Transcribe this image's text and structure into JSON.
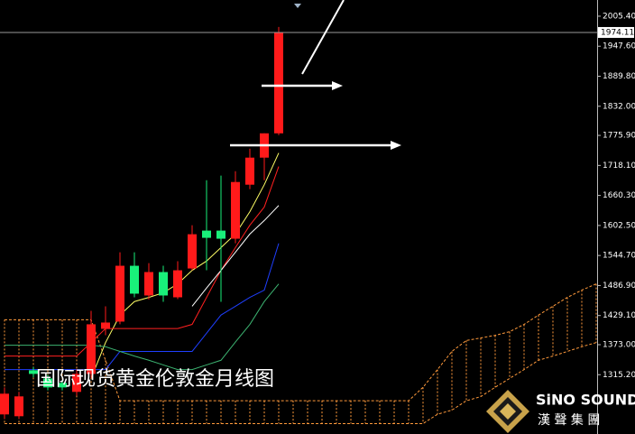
{
  "chart_data": {
    "type": "candlestick",
    "annotation": "国际现货黄金伦敦金月线图",
    "logo": {
      "brand": "SiNO SOUND",
      "subtitle": "漢 聲 集 團"
    },
    "up_color": "#ff1a1a",
    "down_color": "#19f07a",
    "background": "#000000",
    "ylim": [
      1201,
      2036.6
    ],
    "yticks": [
      {
        "value": 2005.4,
        "label": "2005.40"
      },
      {
        "value": 1947.6,
        "label": "1947.60"
      },
      {
        "value": 1889.8,
        "label": "1889.80"
      },
      {
        "value": 1832.0,
        "label": "1832.00"
      },
      {
        "value": 1775.9,
        "label": "1775.90"
      },
      {
        "value": 1718.1,
        "label": "1718.10"
      },
      {
        "value": 1660.3,
        "label": "1660.30"
      },
      {
        "value": 1602.5,
        "label": "1602.50"
      },
      {
        "value": 1544.7,
        "label": "1544.70"
      },
      {
        "value": 1486.9,
        "label": "1486.90"
      },
      {
        "value": 1429.1,
        "label": "1429.10"
      },
      {
        "value": 1373.0,
        "label": "1373.00"
      },
      {
        "value": 1315.2,
        "label": "1315.20"
      }
    ],
    "candles": {
      "open": [
        1238.7,
        1235.2,
        1323.7,
        1308.0,
        1299.4,
        1282.1,
        1316.7,
        1403.5,
        1417.4,
        1524.9,
        1467.7,
        1512.8,
        1464.2,
        1519.7,
        1592.6,
        1592.6,
        1577.0,
        1681.0,
        1733.1,
        1779.9
      ],
      "high": [
        1290.7,
        1282.0,
        1330.0,
        1315.0,
        1305.0,
        1325.4,
        1438.2,
        1446.9,
        1550.9,
        1550.9,
        1530.0,
        1524.9,
        1533.6,
        1603.0,
        1689.7,
        1698.4,
        1707.0,
        1750.4,
        1779.9,
        1984.6
      ],
      "low": [
        1230.0,
        1230.0,
        1310.0,
        1285.0,
        1285.0,
        1275.0,
        1308.0,
        1391.3,
        1412.2,
        1464.2,
        1460.0,
        1455.5,
        1460.8,
        1516.2,
        1516.2,
        1455.5,
        1568.3,
        1672.4,
        1689.7,
        1776.4
      ],
      "close": [
        1278.6,
        1273.4,
        1316.7,
        1290.7,
        1290.7,
        1316.7,
        1412.2,
        1415.6,
        1524.9,
        1471.2,
        1512.8,
        1467.7,
        1516.2,
        1585.6,
        1578.7,
        1577.0,
        1686.2,
        1733.1,
        1779.9,
        1974.11
      ]
    },
    "overlays": [
      {
        "color": "#ffff66",
        "values": [
          null,
          null,
          null,
          null,
          null,
          null,
          1308,
          1377,
          1430,
          1456,
          1464,
          1473,
          1490,
          1516,
          1534,
          1560,
          1586,
          1629,
          1681,
          1742
        ]
      },
      {
        "color": "#ff2020",
        "values": [
          1351,
          1351,
          1351,
          1351,
          1351,
          1351,
          1377,
          1404,
          1404,
          1404,
          1404,
          1404,
          1404,
          1412,
          1464,
          1516,
          1560,
          1603,
          1638,
          1716
        ]
      },
      {
        "color": "#ffffff",
        "values": [
          null,
          null,
          null,
          null,
          null,
          null,
          null,
          null,
          null,
          null,
          null,
          null,
          null,
          1447,
          1482,
          1516,
          1551,
          1586,
          1612,
          1641
        ]
      },
      {
        "color": "#1f3fff",
        "values": [
          1325,
          1325,
          1325,
          1325,
          1325,
          1325,
          1325,
          1325,
          1360,
          1360,
          1360,
          1360,
          1360,
          1360,
          1395,
          1430,
          1447,
          1464,
          1478,
          1568
        ]
      },
      {
        "color": "#3cb371",
        "values": [
          1372,
          1372,
          1372,
          1372,
          1372,
          1372,
          1372,
          1369,
          1360,
          1351,
          1343,
          1334,
          1325,
          1325,
          1334,
          1343,
          1378,
          1412,
          1456,
          1490
        ]
      }
    ],
    "cloud": {
      "color": "#ff9a3c",
      "upper": [
        1421,
        1421,
        1421,
        1421,
        1421,
        1421,
        1421,
        1343,
        1265,
        1265,
        1265,
        1265,
        1265,
        1265,
        1265,
        1265,
        1265,
        1265,
        1265,
        1265,
        1265,
        1265,
        1265,
        1265,
        1265,
        1265,
        1265,
        1265,
        1265,
        1291,
        1325,
        1360,
        1381,
        1386,
        1391,
        1398,
        1412,
        1430,
        1447,
        1464,
        1478,
        1490
      ],
      "lower": [
        1221,
        1221,
        1221,
        1221,
        1221,
        1221,
        1221,
        1221,
        1221,
        1221,
        1221,
        1221,
        1221,
        1221,
        1221,
        1221,
        1221,
        1221,
        1221,
        1221,
        1221,
        1221,
        1221,
        1221,
        1221,
        1221,
        1221,
        1221,
        1221,
        1221,
        1239,
        1247,
        1265,
        1273,
        1291,
        1308,
        1325,
        1343,
        1351,
        1360,
        1369,
        1377
      ]
    }
  }
}
